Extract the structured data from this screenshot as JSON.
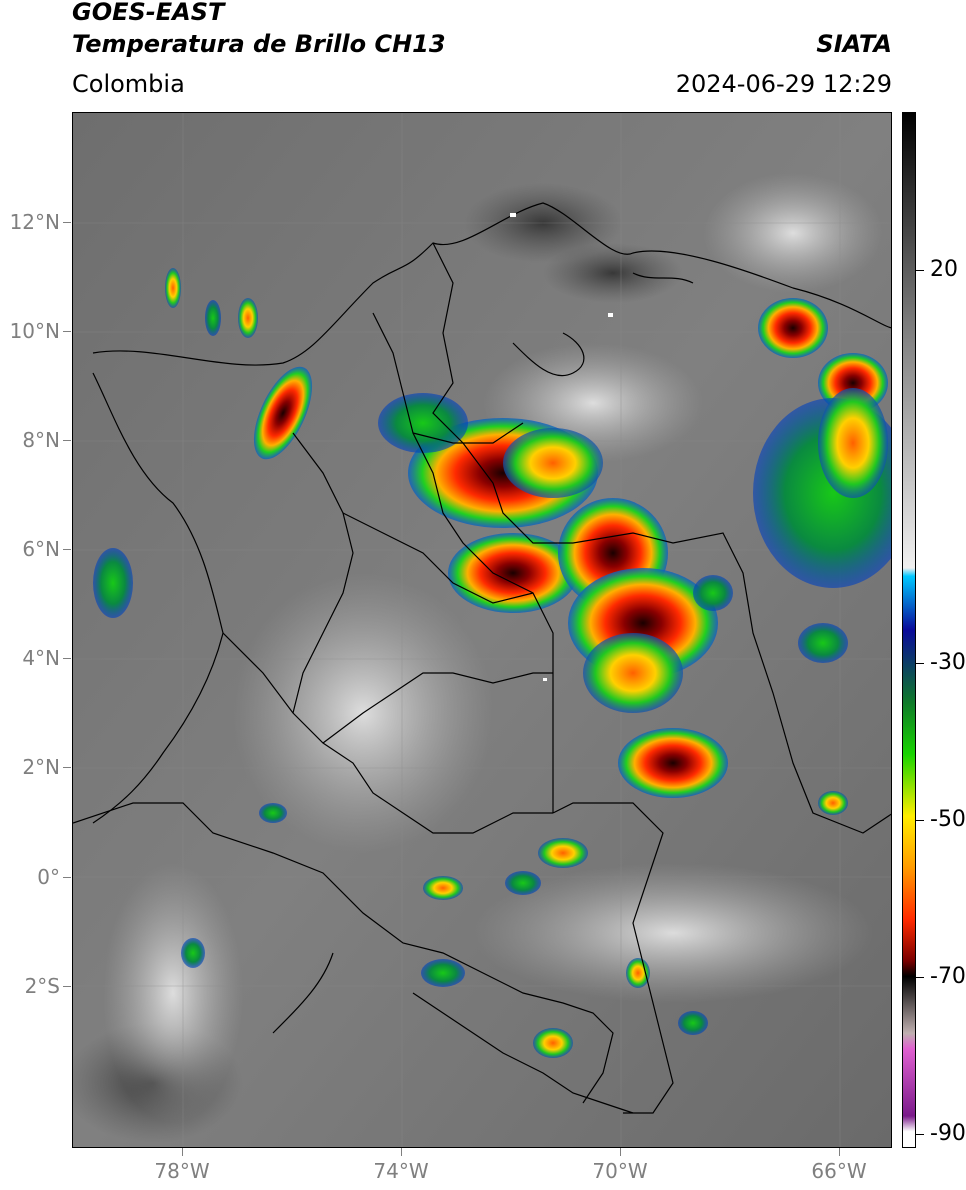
{
  "header": {
    "title_line1": "GOES-EAST",
    "title_line2": "Temperatura de Brillo CH13",
    "brand": "SIATA",
    "region": "Colombia",
    "timestamp": "2024-06-29 12:29"
  },
  "map": {
    "lat_labels": [
      "12°N",
      "10°N",
      "8°N",
      "6°N",
      "4°N",
      "2°N",
      "0°",
      "2°S"
    ],
    "lon_labels": [
      "78°W",
      "74°W",
      "70°W",
      "66°W"
    ]
  },
  "colorbar": {
    "labels": [
      "20",
      "-30",
      "-50",
      "-70",
      "-90"
    ],
    "colors": {
      "cold_black": "#000000",
      "dark_red": "#7a0000",
      "red": "#ff2a00",
      "orange": "#ff9a00",
      "yellow": "#ffee00",
      "green": "#18d400",
      "dark_green": "#0f7a2a",
      "navy": "#0a0a9a",
      "cyan": "#00c8ff",
      "white": "#f0f0f0",
      "gray": "#7a7a7a",
      "magenta": "#e060d0",
      "purple": "#7a1a8a"
    }
  }
}
